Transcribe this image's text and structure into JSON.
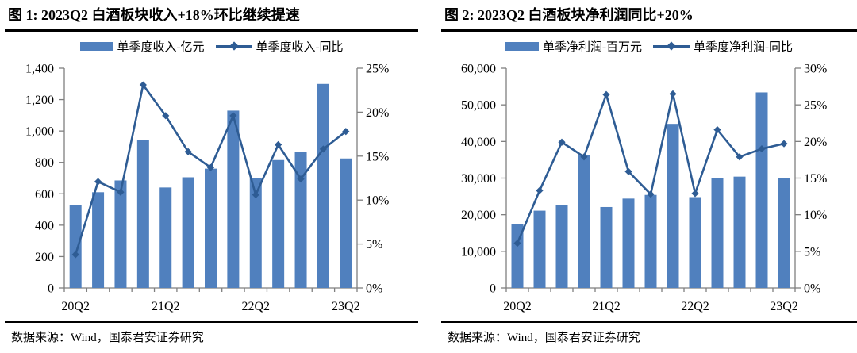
{
  "colors": {
    "bar": "#5080BE",
    "line": "#2E5C94",
    "axis": "#7F7F7F",
    "rule": "#000000"
  },
  "figures": [
    {
      "title": "图 1:  2023Q2 白酒板块收入+18%环比继续提速",
      "legend": {
        "bar_label": "单季度收入-亿元",
        "line_label": "单季度收入-同比"
      },
      "source": "数据来源：Wind，国泰君安证券研究",
      "chart_data": {
        "type": "bar+line",
        "categories": [
          "20Q2",
          "20Q3",
          "20Q4",
          "21Q1",
          "21Q2",
          "21Q3",
          "21Q4",
          "22Q1",
          "22Q2",
          "22Q3",
          "22Q4",
          "23Q1",
          "23Q2"
        ],
        "series": [
          {
            "name": "单季度收入-亿元",
            "type": "bar",
            "axis": "left",
            "values": [
              530,
              610,
              685,
              945,
              640,
              705,
              760,
              1130,
              700,
              815,
              865,
              1300,
              825
            ]
          },
          {
            "name": "单季度收入-同比",
            "type": "line",
            "axis": "right",
            "values": [
              3.8,
              12.1,
              10.9,
              23.1,
              19.6,
              15.5,
              13.7,
              19.6,
              10.6,
              16.3,
              12.4,
              15.8,
              17.8
            ]
          }
        ],
        "left_axis": {
          "min": 0,
          "max": 1400,
          "step": 200,
          "tick_labels": [
            "0",
            "200",
            "400",
            "600",
            "800",
            "1,000",
            "1,200",
            "1,400"
          ]
        },
        "right_axis": {
          "min": 0,
          "max": 25,
          "step": 5,
          "tick_labels": [
            "0%",
            "5%",
            "10%",
            "15%",
            "20%",
            "25%"
          ]
        },
        "x_tick_labels": [
          "20Q2",
          "21Q2",
          "22Q2",
          "23Q2"
        ],
        "x_tick_positions": [
          0,
          4,
          8,
          12
        ],
        "grid": false,
        "legend_position": "top"
      }
    },
    {
      "title": "图 2:  2023Q2 白酒板块净利润同比+20%",
      "legend": {
        "bar_label": "单季净利润-百万元",
        "line_label": "单季度净利润-同比"
      },
      "source": "数据来源：Wind，国泰君安证券研究",
      "chart_data": {
        "type": "bar+line",
        "categories": [
          "20Q2",
          "20Q3",
          "20Q4",
          "21Q1",
          "21Q2",
          "21Q3",
          "21Q4",
          "22Q1",
          "22Q2",
          "22Q3",
          "22Q4",
          "23Q1",
          "23Q2"
        ],
        "series": [
          {
            "name": "单季净利润-百万元",
            "type": "bar",
            "axis": "left",
            "values": [
              17500,
              21100,
              22700,
              36200,
              22100,
              24400,
              25400,
              44800,
              24800,
              30000,
              30400,
              53400,
              30000
            ]
          },
          {
            "name": "单季度净利润-同比",
            "type": "line",
            "axis": "right",
            "values": [
              6.1,
              13.3,
              19.9,
              17.9,
              26.4,
              15.9,
              12.8,
              26.5,
              12.9,
              21.6,
              17.9,
              19.0,
              19.7
            ]
          }
        ],
        "left_axis": {
          "min": 0,
          "max": 60000,
          "step": 10000,
          "tick_labels": [
            "0",
            "10,000",
            "20,000",
            "30,000",
            "40,000",
            "50,000",
            "60,000"
          ]
        },
        "right_axis": {
          "min": 0,
          "max": 30,
          "step": 5,
          "tick_labels": [
            "0%",
            "5%",
            "10%",
            "15%",
            "20%",
            "25%",
            "30%"
          ]
        },
        "x_tick_labels": [
          "20Q2",
          "21Q2",
          "22Q2",
          "23Q2"
        ],
        "x_tick_positions": [
          0,
          4,
          8,
          12
        ],
        "grid": false,
        "legend_position": "top"
      }
    }
  ]
}
